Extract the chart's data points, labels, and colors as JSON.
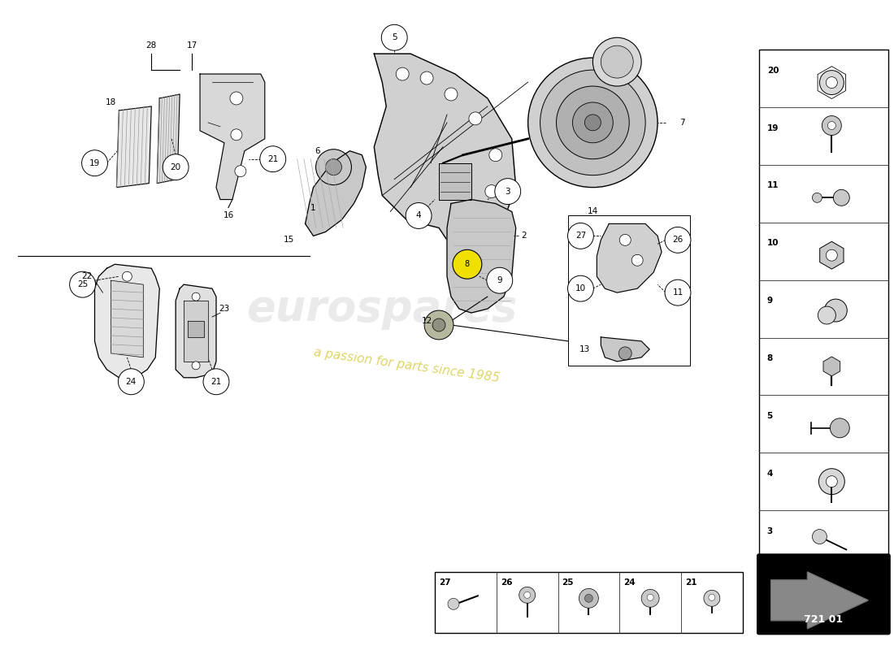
{
  "background_color": "#ffffff",
  "part_number": "721 01",
  "watermark_text": "eurospares",
  "watermark_sub": "a passion for parts since 1985",
  "right_panel_items": [
    {
      "num": 20
    },
    {
      "num": 19
    },
    {
      "num": 11
    },
    {
      "num": 10
    },
    {
      "num": 9
    },
    {
      "num": 8
    },
    {
      "num": 5
    },
    {
      "num": 4
    },
    {
      "num": 3
    }
  ],
  "bottom_panel_items": [
    {
      "num": 27
    },
    {
      "num": 26
    },
    {
      "num": 25
    },
    {
      "num": 24
    },
    {
      "num": 21
    }
  ]
}
